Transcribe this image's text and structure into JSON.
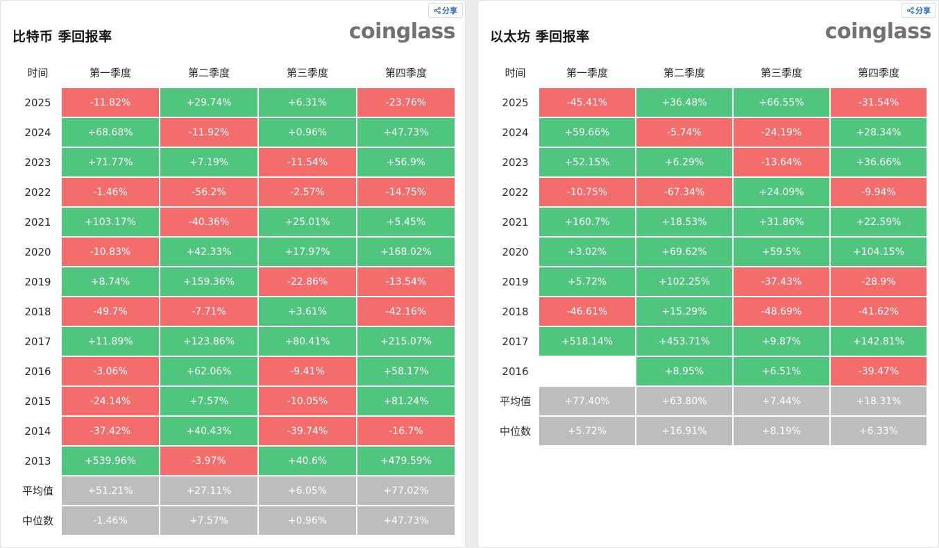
{
  "colors": {
    "positive": "#4fc57e",
    "negative": "#f46d6d",
    "neutral": "#bdbdbd"
  },
  "share_icon": "share-icon",
  "share_label": "分享",
  "brand": "coinglass",
  "headers": [
    "时间",
    "第一季度",
    "第二季度",
    "第三季度",
    "第四季度"
  ],
  "btc": {
    "title": "比特币 季回报率",
    "rows": [
      {
        "label": "2025",
        "kind": "year",
        "values": [
          "-11.82%",
          "+29.74%",
          "+6.31%",
          "-23.76%"
        ]
      },
      {
        "label": "2024",
        "kind": "year",
        "values": [
          "+68.68%",
          "-11.92%",
          "+0.96%",
          "+47.73%"
        ]
      },
      {
        "label": "2023",
        "kind": "year",
        "values": [
          "+71.77%",
          "+7.19%",
          "-11.54%",
          "+56.9%"
        ]
      },
      {
        "label": "2022",
        "kind": "year",
        "values": [
          "-1.46%",
          "-56.2%",
          "-2.57%",
          "-14.75%"
        ]
      },
      {
        "label": "2021",
        "kind": "year",
        "values": [
          "+103.17%",
          "-40.36%",
          "+25.01%",
          "+5.45%"
        ]
      },
      {
        "label": "2020",
        "kind": "year",
        "values": [
          "-10.83%",
          "+42.33%",
          "+17.97%",
          "+168.02%"
        ]
      },
      {
        "label": "2019",
        "kind": "year",
        "values": [
          "+8.74%",
          "+159.36%",
          "-22.86%",
          "-13.54%"
        ]
      },
      {
        "label": "2018",
        "kind": "year",
        "values": [
          "-49.7%",
          "-7.71%",
          "+3.61%",
          "-42.16%"
        ]
      },
      {
        "label": "2017",
        "kind": "year",
        "values": [
          "+11.89%",
          "+123.86%",
          "+80.41%",
          "+215.07%"
        ]
      },
      {
        "label": "2016",
        "kind": "year",
        "values": [
          "-3.06%",
          "+62.06%",
          "-9.41%",
          "+58.17%"
        ]
      },
      {
        "label": "2015",
        "kind": "year",
        "values": [
          "-24.14%",
          "+7.57%",
          "-10.05%",
          "+81.24%"
        ]
      },
      {
        "label": "2014",
        "kind": "year",
        "values": [
          "-37.42%",
          "+40.43%",
          "-39.74%",
          "-16.7%"
        ]
      },
      {
        "label": "2013",
        "kind": "year",
        "values": [
          "+539.96%",
          "-3.97%",
          "+40.6%",
          "+479.59%"
        ]
      },
      {
        "label": "平均值",
        "kind": "stat",
        "values": [
          "+51.21%",
          "+27.11%",
          "+6.05%",
          "+77.02%"
        ]
      },
      {
        "label": "中位数",
        "kind": "stat",
        "values": [
          "-1.46%",
          "+7.57%",
          "+0.96%",
          "+47.73%"
        ]
      }
    ]
  },
  "eth": {
    "title": "以太坊 季回报率",
    "rows": [
      {
        "label": "2025",
        "kind": "year",
        "values": [
          "-45.41%",
          "+36.48%",
          "+66.55%",
          "-31.54%"
        ]
      },
      {
        "label": "2024",
        "kind": "year",
        "values": [
          "+59.66%",
          "-5.74%",
          "-24.19%",
          "+28.34%"
        ]
      },
      {
        "label": "2023",
        "kind": "year",
        "values": [
          "+52.15%",
          "+6.29%",
          "-13.64%",
          "+36.66%"
        ]
      },
      {
        "label": "2022",
        "kind": "year",
        "values": [
          "-10.75%",
          "-67.34%",
          "+24.09%",
          "-9.94%"
        ]
      },
      {
        "label": "2021",
        "kind": "year",
        "values": [
          "+160.7%",
          "+18.53%",
          "+31.86%",
          "+22.59%"
        ]
      },
      {
        "label": "2020",
        "kind": "year",
        "values": [
          "+3.02%",
          "+69.62%",
          "+59.5%",
          "+104.15%"
        ]
      },
      {
        "label": "2019",
        "kind": "year",
        "values": [
          "+5.72%",
          "+102.25%",
          "-37.43%",
          "-28.9%"
        ]
      },
      {
        "label": "2018",
        "kind": "year",
        "values": [
          "-46.61%",
          "+15.29%",
          "-48.69%",
          "-41.62%"
        ]
      },
      {
        "label": "2017",
        "kind": "year",
        "values": [
          "+518.14%",
          "+453.71%",
          "+9.87%",
          "+142.81%"
        ]
      },
      {
        "label": "2016",
        "kind": "year",
        "values": [
          "",
          "+8.95%",
          "+6.51%",
          "-39.47%"
        ]
      },
      {
        "label": "平均值",
        "kind": "stat",
        "values": [
          "+77.40%",
          "+63.80%",
          "+7.44%",
          "+18.31%"
        ]
      },
      {
        "label": "中位数",
        "kind": "stat",
        "values": [
          "+5.72%",
          "+16.91%",
          "+8.19%",
          "+6.33%"
        ]
      }
    ]
  }
}
